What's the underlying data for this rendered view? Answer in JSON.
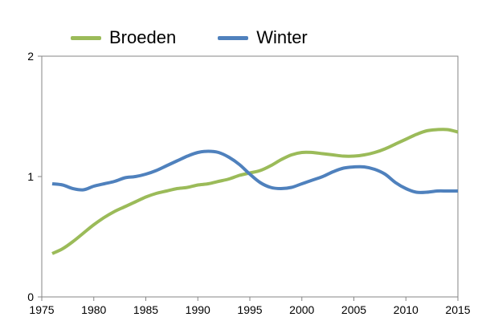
{
  "chart_data": {
    "type": "line",
    "xlim": [
      1975,
      2015
    ],
    "ylim": [
      0,
      2
    ],
    "xticks": [
      "1975",
      "1980",
      "1985",
      "1990",
      "1995",
      "2000",
      "2005",
      "2010",
      "2015"
    ],
    "yticks": [
      "0",
      "1",
      "2"
    ],
    "grid": false,
    "legend_position": "top",
    "x": [
      1976,
      1977,
      1978,
      1979,
      1980,
      1981,
      1982,
      1983,
      1984,
      1985,
      1986,
      1987,
      1988,
      1989,
      1990,
      1991,
      1992,
      1993,
      1994,
      1995,
      1996,
      1997,
      1998,
      1999,
      2000,
      2001,
      2002,
      2003,
      2004,
      2005,
      2006,
      2007,
      2008,
      2009,
      2010,
      2011,
      2012,
      2013,
      2014,
      2015
    ],
    "series": [
      {
        "name": "Broeden",
        "color": "#9bbb59",
        "values": [
          0.36,
          0.4,
          0.46,
          0.53,
          0.6,
          0.66,
          0.71,
          0.75,
          0.79,
          0.83,
          0.86,
          0.88,
          0.9,
          0.91,
          0.93,
          0.94,
          0.96,
          0.98,
          1.01,
          1.03,
          1.05,
          1.09,
          1.14,
          1.18,
          1.2,
          1.2,
          1.19,
          1.18,
          1.17,
          1.17,
          1.18,
          1.2,
          1.23,
          1.27,
          1.31,
          1.35,
          1.38,
          1.39,
          1.39,
          1.37
        ]
      },
      {
        "name": "Winter",
        "color": "#4f81bd",
        "values": [
          0.94,
          0.93,
          0.9,
          0.89,
          0.92,
          0.94,
          0.96,
          0.99,
          1.0,
          1.02,
          1.05,
          1.09,
          1.13,
          1.17,
          1.2,
          1.21,
          1.2,
          1.16,
          1.1,
          1.02,
          0.95,
          0.91,
          0.9,
          0.91,
          0.94,
          0.97,
          1.0,
          1.04,
          1.07,
          1.08,
          1.08,
          1.06,
          1.02,
          0.95,
          0.9,
          0.87,
          0.87,
          0.88,
          0.88,
          0.88
        ]
      }
    ]
  }
}
